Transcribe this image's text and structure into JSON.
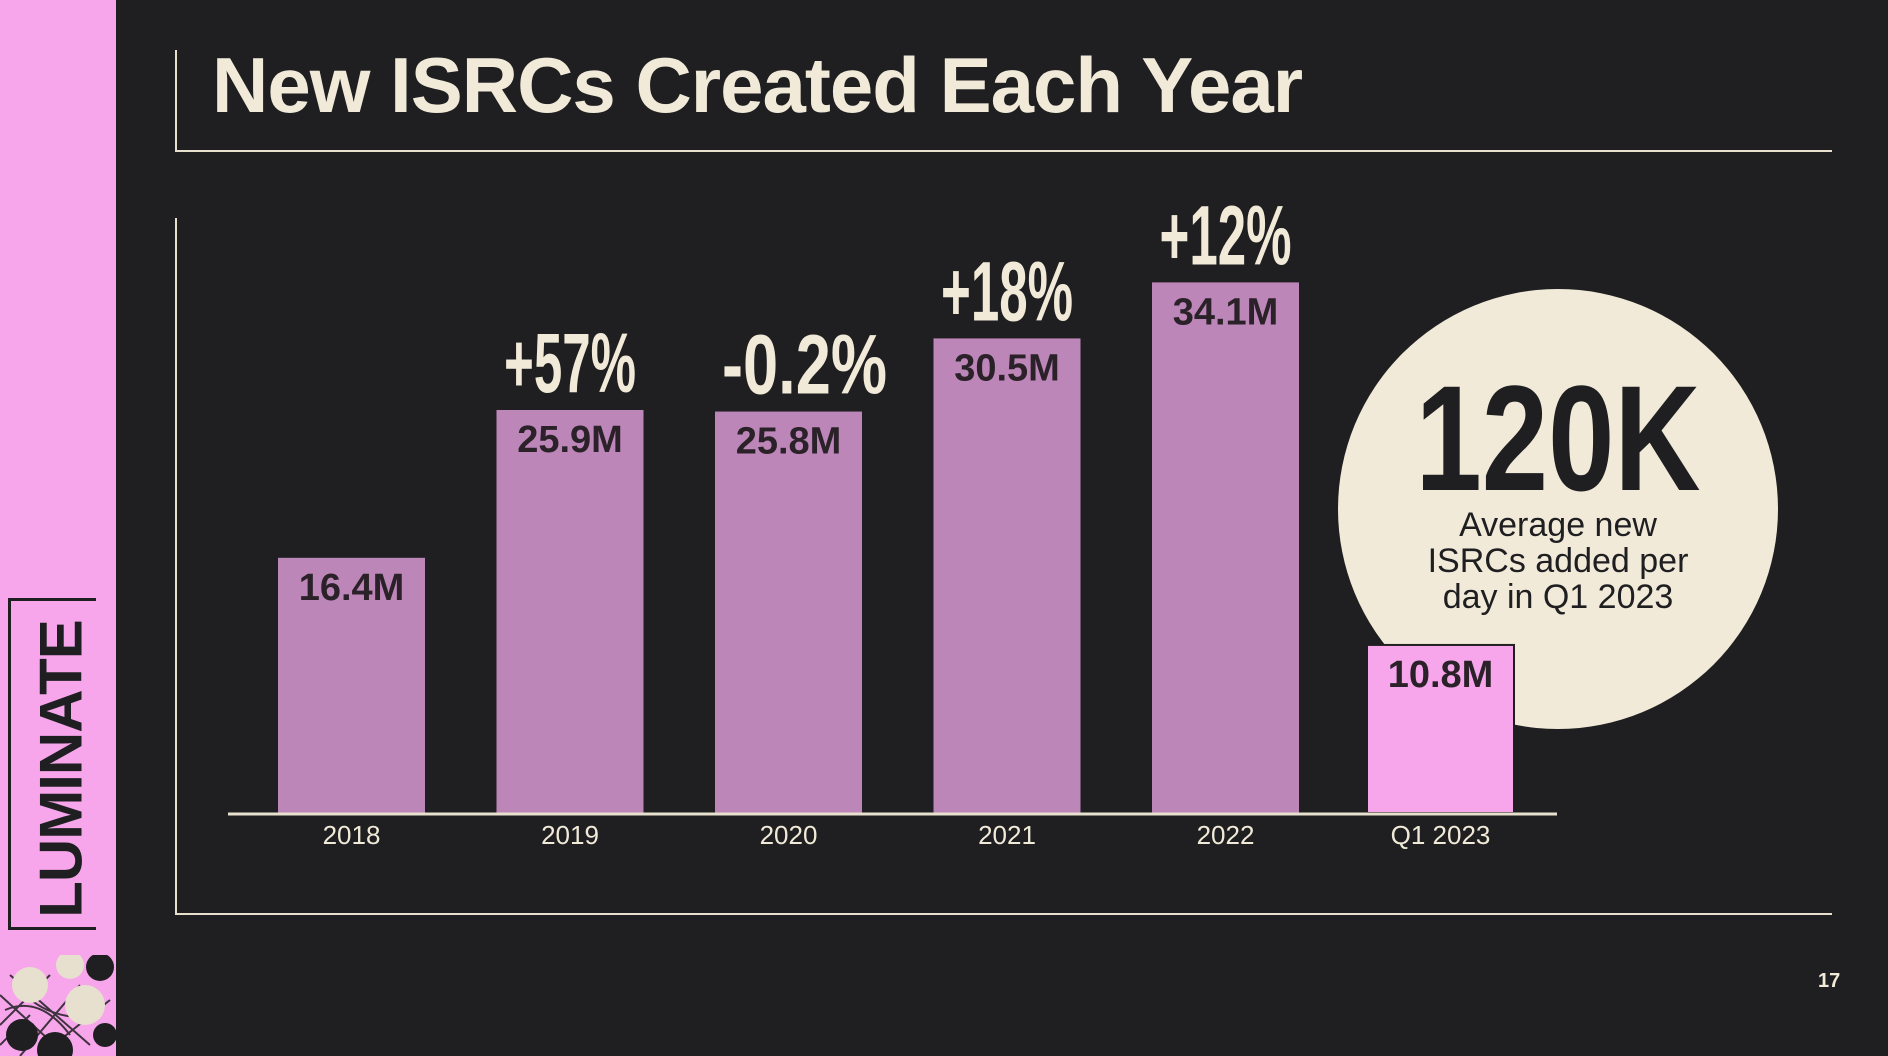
{
  "slide": {
    "title": "New ISRCs Created Each Year",
    "page_number": "17",
    "brand": "LUMINATE"
  },
  "callout": {
    "value": "120K",
    "caption_lines": [
      "Average new",
      "ISRCs added per",
      "day in Q1 2023"
    ]
  },
  "colors": {
    "background": "#1f1f22",
    "bar": "#bd86b9",
    "bar_highlight": "#f7a6ec",
    "cream": "#f1ead8",
    "sidebar": "#f7a6ec"
  },
  "chart_data": {
    "type": "bar",
    "title": "New ISRCs Created Each Year",
    "xlabel": "",
    "ylabel": "",
    "categories": [
      "2018",
      "2019",
      "2020",
      "2021",
      "2022",
      "Q1 2023"
    ],
    "values": [
      16.4,
      25.9,
      25.8,
      30.5,
      34.1,
      10.8
    ],
    "unit": "M",
    "data_labels": [
      "16.4M",
      "25.9M",
      "25.8M",
      "30.5M",
      "34.1M",
      "10.8M"
    ],
    "growth_labels": [
      "",
      "+57%",
      "-0.2%",
      "+18%",
      "+12%",
      ""
    ],
    "highlight_index": 5,
    "ylim": [
      0,
      40
    ],
    "grid": false
  }
}
